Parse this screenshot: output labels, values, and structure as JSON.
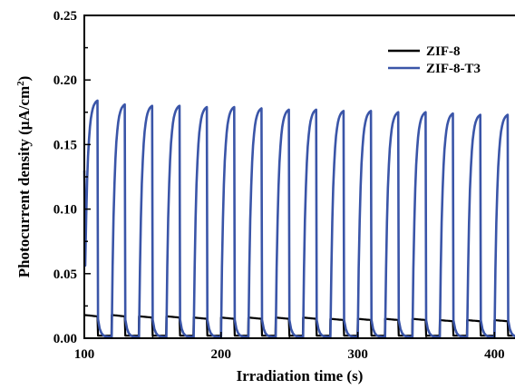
{
  "chart_data": {
    "type": "line",
    "title": "",
    "xlabel": "Irradiation time (s)",
    "ylabel_prefix": "Photocurrent density (μA/cm",
    "ylabel_sup": "2",
    "ylabel_suffix": ")",
    "xlim": [
      100,
      415
    ],
    "ylim": [
      0,
      0.25
    ],
    "x_ticks": [
      100,
      200,
      300,
      400
    ],
    "x_tick_labels": [
      "100",
      "200",
      "300",
      "400"
    ],
    "y_ticks": [
      0.0,
      0.05,
      0.1,
      0.15,
      0.2,
      0.25
    ],
    "y_tick_labels": [
      "0.00",
      "0.05",
      "0.10",
      "0.15",
      "0.20",
      "0.25"
    ],
    "legend_position": "top-right",
    "on_off_period_s": 20,
    "series": [
      {
        "name": "ZIF-8",
        "color": "#000000",
        "light_on_start_s": [
          100,
          120,
          140,
          160,
          180,
          200,
          220,
          240,
          260,
          280,
          300,
          320,
          340,
          360,
          380,
          400
        ],
        "on_peak_values": [
          0.018,
          0.018,
          0.017,
          0.017,
          0.016,
          0.016,
          0.016,
          0.016,
          0.016,
          0.015,
          0.015,
          0.015,
          0.015,
          0.014,
          0.014,
          0.014
        ],
        "off_value": 0.002
      },
      {
        "name": "ZIF-8-T3",
        "color": "#3a55a8",
        "light_on_start_s": [
          100,
          120,
          140,
          160,
          180,
          200,
          220,
          240,
          260,
          280,
          300,
          320,
          340,
          360,
          380,
          400
        ],
        "on_peak_values": [
          0.184,
          0.181,
          0.18,
          0.18,
          0.179,
          0.179,
          0.178,
          0.177,
          0.177,
          0.176,
          0.176,
          0.175,
          0.175,
          0.174,
          0.173,
          0.173
        ],
        "off_value": 0.001
      }
    ]
  }
}
